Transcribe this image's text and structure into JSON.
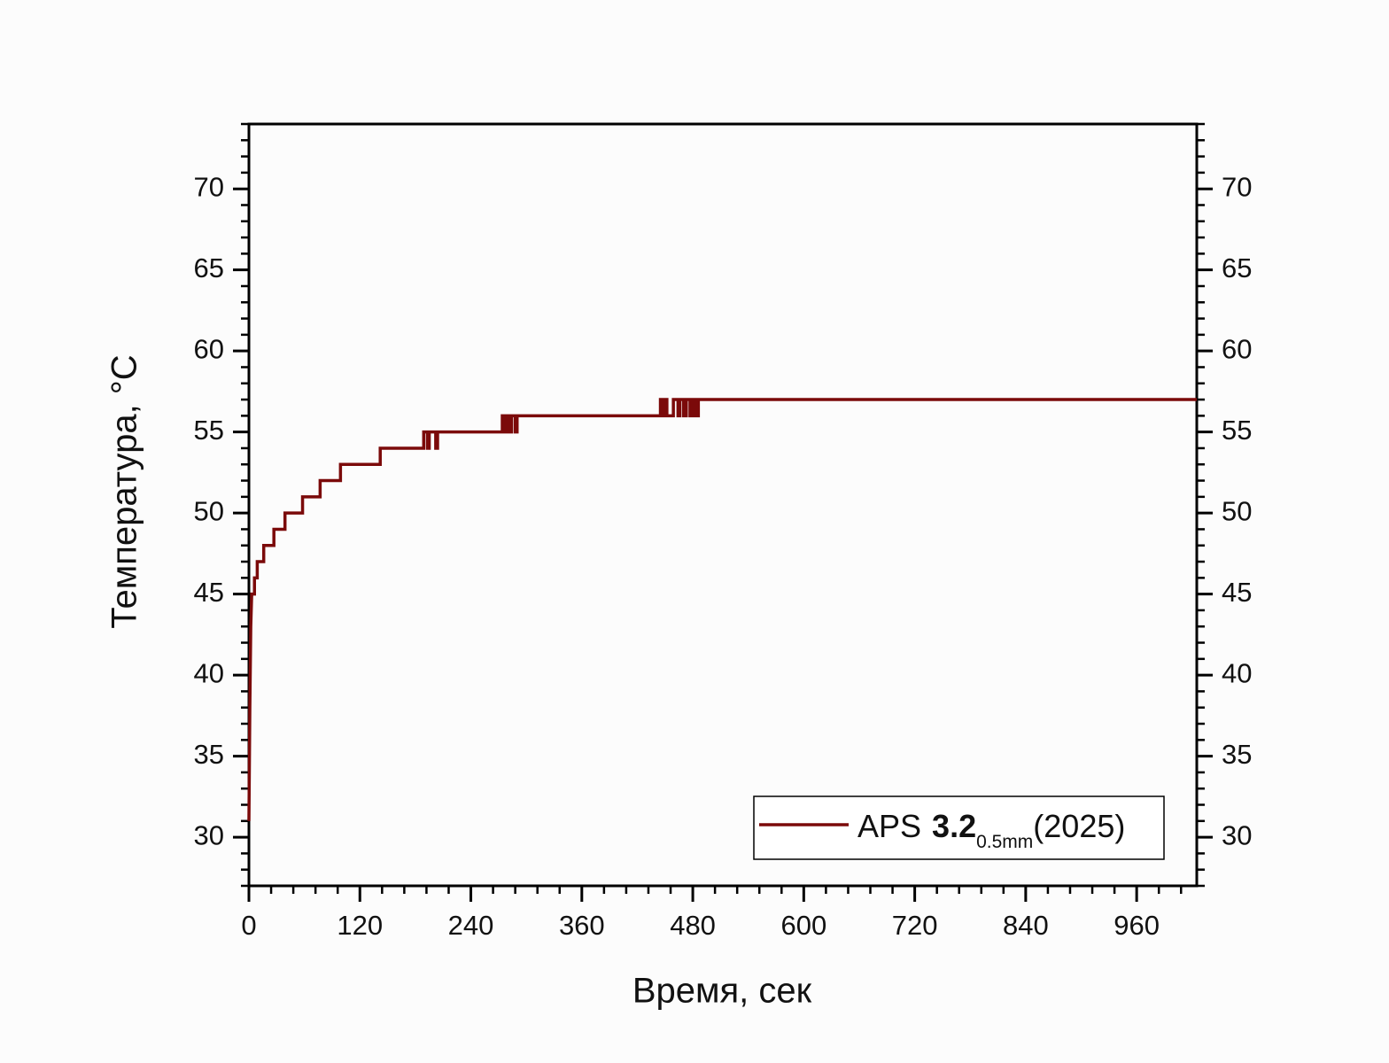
{
  "chart_data": {
    "type": "line",
    "x_label": "Время, сек",
    "y_label": "Температура, °C",
    "xlim": [
      0,
      1025
    ],
    "ylim": [
      27,
      74
    ],
    "xticks": [
      0,
      120,
      240,
      360,
      480,
      600,
      720,
      840,
      960
    ],
    "yticks": [
      30,
      35,
      40,
      45,
      50,
      55,
      60,
      65,
      70
    ],
    "mirror_y_labels": true,
    "grid": false,
    "legend": "lower right",
    "series": [
      {
        "name": [
          "APS",
          "3.2",
          "0.5mm",
          "(2025)"
        ],
        "color": "#7b0a0a",
        "x": [
          0,
          1,
          2,
          3,
          6,
          6,
          9,
          9,
          16,
          16,
          27,
          27,
          39,
          39,
          58,
          58,
          77,
          77,
          99,
          99,
          142,
          142,
          189,
          189,
          193,
          193,
          195,
          195,
          202,
          202,
          204,
          204,
          274,
          274,
          276,
          276,
          278,
          278,
          281,
          281,
          284,
          284,
          288,
          288,
          290,
          290,
          445,
          445,
          447,
          447,
          450,
          450,
          452,
          452,
          459,
          459,
          464,
          464,
          466,
          466,
          470,
          470,
          473,
          473,
          477,
          477,
          480,
          480,
          483,
          483,
          486,
          486,
          1025
        ],
        "values": [
          31,
          38,
          43,
          45,
          45,
          46,
          46,
          47,
          47,
          48,
          48,
          49,
          49,
          50,
          50,
          51,
          51,
          52,
          52,
          53,
          53,
          54,
          54,
          55,
          55,
          54,
          54,
          55,
          55,
          54,
          54,
          55,
          55,
          56,
          56,
          55,
          55,
          56,
          56,
          55,
          55,
          56,
          56,
          55,
          55,
          56,
          56,
          57,
          57,
          56,
          56,
          57,
          57,
          56,
          56,
          57,
          57,
          56,
          56,
          57,
          57,
          56,
          56,
          57,
          57,
          56,
          56,
          57,
          57,
          56,
          56,
          57,
          57
        ]
      }
    ]
  }
}
